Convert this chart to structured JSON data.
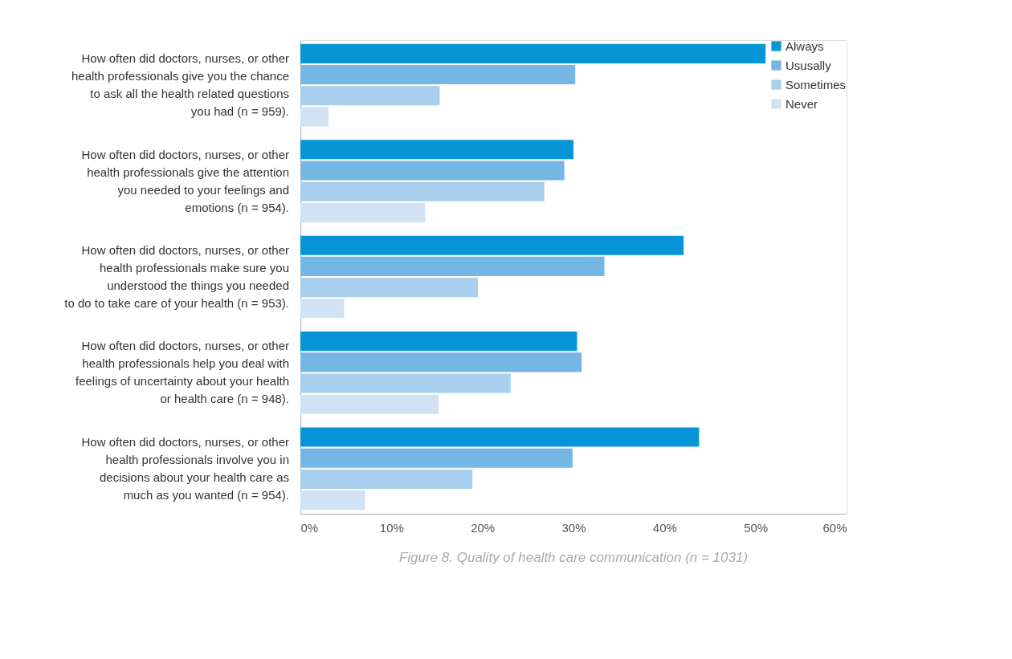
{
  "chart_data": {
    "type": "bar",
    "orientation": "horizontal",
    "categories": [
      "How often did doctors, nurses, or other\nhealth professionals give you the chance\nto ask all the health related questions\nyou had (n = 959).",
      "How often did doctors, nurses, or other\nhealth professionals give the attention\nyou needed to your feelings and\nemotions (n = 954).",
      "How often did doctors, nurses, or other\nhealth professionals make sure you\nunderstood the things you needed\nto do to take care of your health (n = 953).",
      "How often did doctors, nurses, or other\nhealth professionals help you deal with\nfeelings of uncertainty about your health\nor health care (n = 948).",
      "How often did doctors, nurses, or other\nhealth professionals involve you in\ndecisions about your health care as\nmuch as you wanted (n = 954)."
    ],
    "series": [
      {
        "name": "Always",
        "color": "#0696d7",
        "values": [
          51.1,
          30.0,
          42.1,
          30.4,
          43.8
        ]
      },
      {
        "name": "Ususally",
        "color": "#74b6e4",
        "values": [
          30.2,
          29.0,
          33.4,
          30.9,
          29.9
        ]
      },
      {
        "name": "Sometimes",
        "color": "#a9cfee",
        "values": [
          15.3,
          26.8,
          19.5,
          23.1,
          18.9
        ]
      },
      {
        "name": "Never",
        "color": "#cfe3f5",
        "values": [
          3.1,
          13.7,
          4.8,
          15.2,
          7.1
        ]
      }
    ],
    "xlim": [
      0,
      60
    ],
    "xticks": [
      {
        "value": 0,
        "label": "0%"
      },
      {
        "value": 10,
        "label": "10%"
      },
      {
        "value": 20,
        "label": "20%"
      },
      {
        "value": 30,
        "label": "30%"
      },
      {
        "value": 40,
        "label": "40%"
      },
      {
        "value": 50,
        "label": "50%"
      },
      {
        "value": 60,
        "label": "60%"
      }
    ],
    "grid": false,
    "legend": "top right",
    "annotations": [
      "Figure 8. Quality of health care communication (n = 1031)"
    ]
  }
}
